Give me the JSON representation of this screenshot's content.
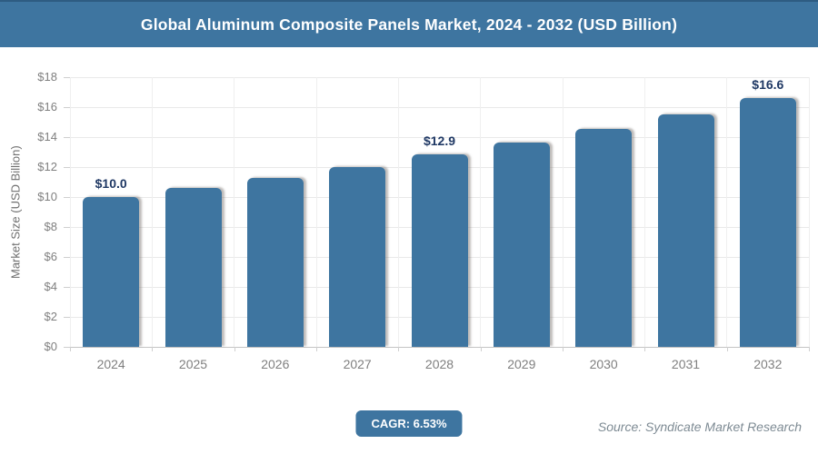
{
  "header": {
    "title": "Global Aluminum Composite Panels Market, 2024 - 2032 (USD Billion)"
  },
  "chart_data": {
    "type": "bar",
    "title": "Global Aluminum Composite Panels Market, 2024 - 2032 (USD Billion)",
    "categories": [
      "2024",
      "2025",
      "2026",
      "2027",
      "2028",
      "2029",
      "2030",
      "2031",
      "2032"
    ],
    "values": [
      10.0,
      10.6,
      11.3,
      12.0,
      12.85,
      13.65,
      14.55,
      15.5,
      16.6
    ],
    "data_labels": [
      "$10.0",
      null,
      null,
      null,
      "$12.9",
      null,
      null,
      null,
      "$16.6"
    ],
    "xlabel": "",
    "ylabel": "Market Size (USD Billion)",
    "ylim": [
      0,
      18
    ],
    "ytick_step": 2,
    "ytick_labels": [
      "$0",
      "$2",
      "$4",
      "$6",
      "$8",
      "$10",
      "$12",
      "$14",
      "$16",
      "$18"
    ],
    "grid": true,
    "legend": false,
    "bar_color": "#3e75a0",
    "data_label_color": "#1f3864"
  },
  "footer": {
    "cagr_label": "CAGR: 6.53%",
    "source": "Source: Syndicate Market Research"
  },
  "colors": {
    "accent": "#3e75a0",
    "tick_label": "#7f7f7f",
    "grid": "#e9e9e9"
  }
}
